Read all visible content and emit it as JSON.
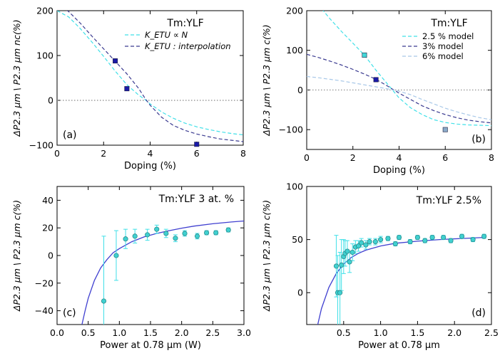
{
  "chart_data": [
    {
      "id": "a",
      "type": "line",
      "panel_label": "(a)",
      "title": "Tm:YLF",
      "xlabel": "Doping (%)",
      "ylabel": "ΔP2.3 µm \\ P2.3 µm nc(%)",
      "xlim": [
        0,
        8
      ],
      "ylim": [
        -100,
        200
      ],
      "xticks": [
        0,
        2,
        4,
        6,
        8
      ],
      "yticks": [
        -100,
        0,
        100,
        200
      ],
      "grid": false,
      "legend_position": "top-right",
      "reference_line": 0,
      "series": [
        {
          "name": "K_ETU ∝ N",
          "style": "dashed",
          "color": "#40e0e8",
          "x": [
            0,
            0.5,
            1,
            1.5,
            2,
            2.5,
            3,
            3.5,
            3.8,
            4,
            4.5,
            5,
            5.5,
            6,
            6.5,
            7,
            7.5,
            8
          ],
          "y": [
            200,
            186,
            160,
            130,
            98,
            65,
            35,
            12,
            1,
            -8,
            -26,
            -40,
            -51,
            -59,
            -65,
            -70,
            -74,
            -77
          ]
        },
        {
          "name": "K_ETU : interpolation",
          "style": "dashed",
          "color": "#3a3a90",
          "x": [
            0,
            0.5,
            1,
            1.5,
            2,
            2.5,
            3,
            3.5,
            3.8,
            4,
            4.5,
            5,
            5.5,
            6,
            6.5,
            7,
            7.5,
            8
          ],
          "y": [
            215,
            198,
            172,
            143,
            115,
            87,
            59,
            27,
            3,
            -11,
            -38,
            -56,
            -67,
            -75,
            -81,
            -86,
            -89,
            -92
          ]
        }
      ],
      "points": [
        {
          "x": 2.5,
          "y": 88,
          "color": "#1a1aa8"
        },
        {
          "x": 3.0,
          "y": 26,
          "color": "#1a1aa8"
        },
        {
          "x": 6.0,
          "y": -98,
          "color": "#1a1aa8"
        }
      ]
    },
    {
      "id": "b",
      "type": "line",
      "panel_label": "(b)",
      "title": "Tm:YLF",
      "xlabel": "Doping (%)",
      "ylabel": "ΔP2.3 µm \\ P2.3 µm c(%)",
      "xlim": [
        0,
        8
      ],
      "ylim": [
        -150,
        200
      ],
      "xticks": [
        0,
        2,
        4,
        6,
        8
      ],
      "yticks": [
        -100,
        0,
        100,
        200
      ],
      "grid": false,
      "legend_position": "top-right",
      "reference_line": 0,
      "series": [
        {
          "name": "2.5 % model",
          "style": "dashed",
          "color": "#40e0e8",
          "x": [
            0.5,
            1,
            1.5,
            2,
            2.5,
            3,
            3.5,
            4,
            4.5,
            5,
            5.5,
            6,
            6.5,
            7,
            7.5,
            8
          ],
          "y": [
            215,
            180,
            148,
            118,
            88,
            50,
            15,
            -20,
            -45,
            -62,
            -75,
            -82,
            -86,
            -88,
            -89,
            -90
          ]
        },
        {
          "name": "3% model",
          "style": "dashed",
          "color": "#3a3a90",
          "x": [
            0,
            0.5,
            1,
            1.5,
            2,
            2.5,
            3,
            3.5,
            4,
            4.5,
            5,
            5.5,
            6,
            6.5,
            7,
            7.5,
            8
          ],
          "y": [
            90,
            82,
            73,
            63,
            52,
            40,
            27,
            10,
            -8,
            -24,
            -40,
            -52,
            -62,
            -70,
            -76,
            -80,
            -83
          ]
        },
        {
          "name": "6% model",
          "style": "dashed",
          "color": "#a8c8e8",
          "x": [
            0,
            0.5,
            1,
            1.5,
            2,
            2.5,
            3,
            3.5,
            4,
            4.5,
            5,
            5.5,
            6,
            6.5,
            7,
            7.5,
            8
          ],
          "y": [
            34,
            31,
            27,
            23,
            18,
            13,
            8,
            3,
            -3,
            -12,
            -24,
            -35,
            -46,
            -55,
            -63,
            -70,
            -75
          ]
        }
      ],
      "points": [
        {
          "x": 2.5,
          "y": 88,
          "color": "#40d8d8"
        },
        {
          "x": 3.0,
          "y": 26,
          "color": "#1a1aa8"
        },
        {
          "x": 6.0,
          "y": -100,
          "color": "#8aaac8"
        }
      ]
    },
    {
      "id": "c",
      "type": "scatter",
      "panel_label": "(c)",
      "title": "Tm:YLF 3 at. %",
      "xlabel": "Power at 0.78 µm (W)",
      "ylabel": "ΔP2.3 µm \\ P2.3 µm c(%)",
      "xlim": [
        0,
        3
      ],
      "ylim": [
        -50,
        50
      ],
      "xticks": [
        0.0,
        0.5,
        1.0,
        1.5,
        2.0,
        2.5,
        3.0
      ],
      "xticklabels": [
        "0.0",
        "0.5",
        "1.0",
        "1.5",
        "2.0",
        "2.5",
        "3.0"
      ],
      "yticks": [
        -40,
        -20,
        0,
        20,
        40
      ],
      "grid": false,
      "fit_curve": {
        "color": "#4040d0",
        "x": [
          0.4,
          0.45,
          0.5,
          0.6,
          0.7,
          0.8,
          0.9,
          1.0,
          1.2,
          1.4,
          1.6,
          1.8,
          2.0,
          2.2,
          2.5,
          2.8,
          3.0
        ],
        "y": [
          -50,
          -40,
          -31,
          -18,
          -9,
          -3,
          2,
          5,
          10,
          13.5,
          16,
          18,
          19.8,
          21.3,
          23,
          24.3,
          25
        ]
      },
      "points": [
        {
          "x": 0.75,
          "y": -33,
          "err": 47
        },
        {
          "x": 0.95,
          "y": 0,
          "err": 18
        },
        {
          "x": 1.1,
          "y": 12,
          "err": 7
        },
        {
          "x": 1.25,
          "y": 14,
          "err": 5
        },
        {
          "x": 1.45,
          "y": 15,
          "err": 4
        },
        {
          "x": 1.6,
          "y": 19,
          "err": 3
        },
        {
          "x": 1.75,
          "y": 16,
          "err": 3
        },
        {
          "x": 1.9,
          "y": 12.5,
          "err": 2.5
        },
        {
          "x": 2.05,
          "y": 16,
          "err": 2
        },
        {
          "x": 2.25,
          "y": 14,
          "err": 2
        },
        {
          "x": 2.4,
          "y": 16.5,
          "err": 1.5
        },
        {
          "x": 2.55,
          "y": 16.5,
          "err": 1.5
        },
        {
          "x": 2.75,
          "y": 18.5,
          "err": 1.5
        }
      ]
    },
    {
      "id": "d",
      "type": "scatter",
      "panel_label": "(d)",
      "title": "Tm:YLF 2.5%",
      "xlabel": "Power at 0.78 µm",
      "ylabel": "ΔP2.3 µm \\ P2.3 µm c(%)",
      "xlim": [
        0,
        2.5
      ],
      "ylim": [
        -30,
        100
      ],
      "xticks": [
        0.5,
        1.0,
        1.5,
        2.0,
        2.5
      ],
      "xticklabels": [
        "0.5",
        "1.0",
        "1.5",
        "2.0",
        "2.5"
      ],
      "yticks": [
        0,
        50,
        100
      ],
      "grid": false,
      "fit_curve": {
        "color": "#4040d0",
        "x": [
          0.15,
          0.2,
          0.3,
          0.4,
          0.5,
          0.6,
          0.7,
          0.8,
          1.0,
          1.2,
          1.5,
          1.8,
          2.1,
          2.4
        ],
        "y": [
          -30,
          -15,
          5,
          18,
          27,
          33,
          37,
          40,
          44,
          46.5,
          48.5,
          50,
          51,
          52
        ]
      },
      "points": [
        {
          "x": 0.4,
          "y": 25,
          "err": 29
        },
        {
          "x": 0.42,
          "y": 0,
          "err": 35
        },
        {
          "x": 0.45,
          "y": 0,
          "err": 38
        },
        {
          "x": 0.47,
          "y": 26,
          "err": 24
        },
        {
          "x": 0.5,
          "y": 34,
          "err": 16
        },
        {
          "x": 0.52,
          "y": 37,
          "err": 12
        },
        {
          "x": 0.55,
          "y": 39,
          "err": 10
        },
        {
          "x": 0.58,
          "y": 29,
          "err": 10
        },
        {
          "x": 0.62,
          "y": 38,
          "err": 8
        },
        {
          "x": 0.66,
          "y": 43,
          "err": 6
        },
        {
          "x": 0.7,
          "y": 44,
          "err": 5
        },
        {
          "x": 0.74,
          "y": 47,
          "err": 4
        },
        {
          "x": 0.8,
          "y": 45,
          "err": 4
        },
        {
          "x": 0.85,
          "y": 48,
          "err": 3
        },
        {
          "x": 0.93,
          "y": 48,
          "err": 3
        },
        {
          "x": 1.0,
          "y": 50,
          "err": 3
        },
        {
          "x": 1.1,
          "y": 51,
          "err": 2
        },
        {
          "x": 1.2,
          "y": 46,
          "err": 2
        },
        {
          "x": 1.25,
          "y": 52,
          "err": 2
        },
        {
          "x": 1.4,
          "y": 48,
          "err": 2
        },
        {
          "x": 1.5,
          "y": 52,
          "err": 2
        },
        {
          "x": 1.6,
          "y": 49,
          "err": 2
        },
        {
          "x": 1.7,
          "y": 52,
          "err": 2
        },
        {
          "x": 1.85,
          "y": 52,
          "err": 2
        },
        {
          "x": 1.95,
          "y": 49,
          "err": 2
        },
        {
          "x": 2.1,
          "y": 53,
          "err": 2
        },
        {
          "x": 2.25,
          "y": 50,
          "err": 2
        },
        {
          "x": 2.4,
          "y": 53,
          "err": 2
        }
      ]
    }
  ],
  "colors": {
    "axis": "#000000",
    "zero_line": "#888888",
    "errorbar": "#40e0e8",
    "marker_fill": "#40d0d0",
    "marker_edge": "#208080"
  }
}
